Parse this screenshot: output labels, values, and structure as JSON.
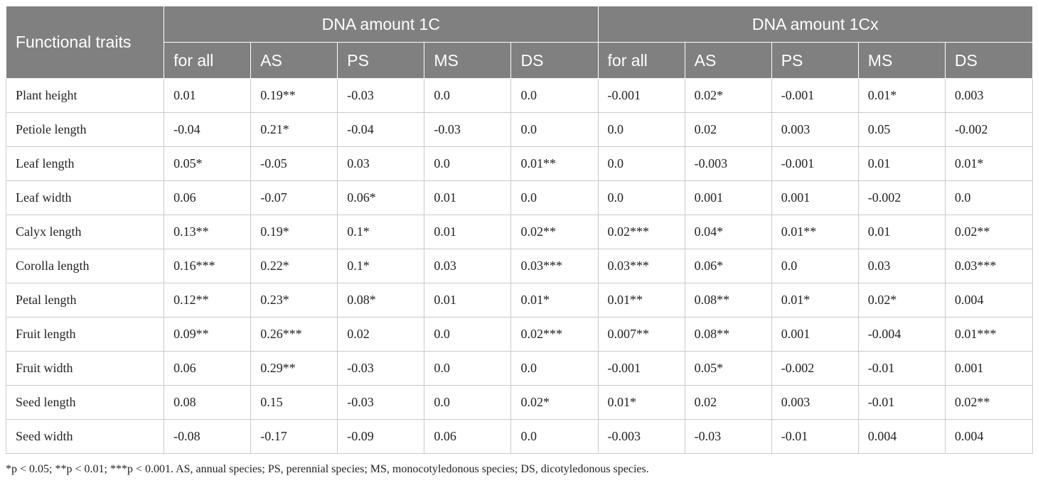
{
  "header": {
    "trait_col": "Functional traits",
    "group_1c": "DNA amount 1C",
    "group_1cx": "DNA amount 1Cx",
    "subcols": [
      "for all",
      "AS",
      "PS",
      "MS",
      "DS",
      "for all",
      "AS",
      "PS",
      "MS",
      "DS"
    ]
  },
  "rows": [
    {
      "trait": "Plant height",
      "v": [
        "0.01",
        "0.19**",
        "-0.03",
        "0.0",
        "0.0",
        "-0.001",
        "0.02*",
        "-0.001",
        "0.01*",
        "0.003"
      ]
    },
    {
      "trait": "Petiole length",
      "v": [
        "-0.04",
        "0.21*",
        "-0.04",
        "-0.03",
        "0.0",
        "0.0",
        "0.02",
        "0.003",
        "0.05",
        "-0.002"
      ]
    },
    {
      "trait": "Leaf length",
      "v": [
        "0.05*",
        "-0.05",
        "0.03",
        "0.0",
        "0.01**",
        "0.0",
        "-0.003",
        "-0.001",
        "0.01",
        "0.01*"
      ]
    },
    {
      "trait": "Leaf width",
      "v": [
        "0.06",
        "-0.07",
        "0.06*",
        "0.01",
        "0.0",
        "0.0",
        "0.001",
        "0.001",
        "-0.002",
        "0.0"
      ]
    },
    {
      "trait": "Calyx length",
      "v": [
        "0.13**",
        "0.19*",
        "0.1*",
        "0.01",
        "0.02**",
        "0.02***",
        "0.04*",
        "0.01**",
        "0.01",
        "0.02**"
      ]
    },
    {
      "trait": "Corolla length",
      "v": [
        "0.16***",
        "0.22*",
        "0.1*",
        "0.03",
        "0.03***",
        "0.03***",
        "0.06*",
        "0.0",
        "0.03",
        "0.03***"
      ]
    },
    {
      "trait": "Petal length",
      "v": [
        "0.12**",
        "0.23*",
        "0.08*",
        "0.01",
        "0.01*",
        "0.01**",
        "0.08**",
        "0.01*",
        "0.02*",
        "0.004"
      ]
    },
    {
      "trait": "Fruit length",
      "v": [
        "0.09**",
        "0.26***",
        "0.02",
        "0.0",
        "0.02***",
        "0.007**",
        "0.08**",
        "0.001",
        "-0.004",
        "0.01***"
      ]
    },
    {
      "trait": "Fruit width",
      "v": [
        "0.06",
        "0.29**",
        "-0.03",
        "0.0",
        "0.0",
        "-0.001",
        "0.05*",
        "-0.002",
        "-0.01",
        "0.001"
      ]
    },
    {
      "trait": "Seed length",
      "v": [
        "0.08",
        "0.15",
        "-0.03",
        "0.0",
        "0.02*",
        "0.01*",
        "0.02",
        "0.003",
        "-0.01",
        "0.02**"
      ]
    },
    {
      "trait": "Seed width",
      "v": [
        "-0.08",
        "-0.17",
        "-0.09",
        "0.06",
        "0.0",
        "-0.003",
        "-0.03",
        "-0.01",
        "0.004",
        "0.004"
      ]
    }
  ],
  "footnote": "*p < 0.05; **p < 0.01; ***p < 0.001. AS, annual species; PS, perennial species; MS, monocotyledonous species; DS, dicotyledonous species."
}
